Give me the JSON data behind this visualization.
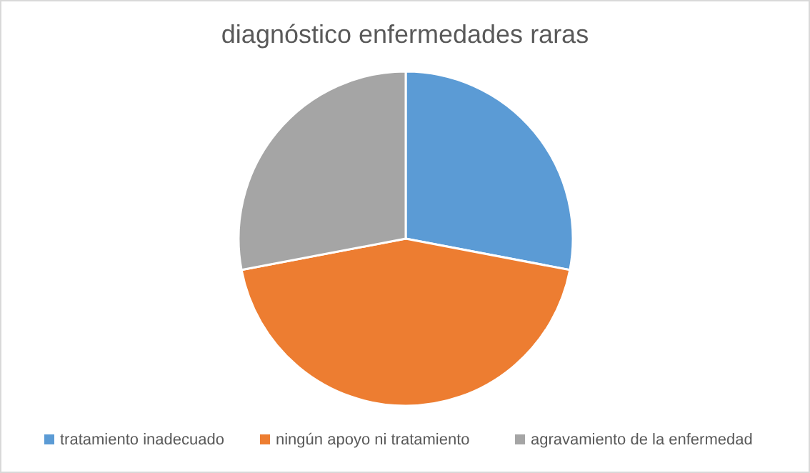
{
  "chart_data": {
    "type": "pie",
    "title": "diagnóstico enfermedades raras",
    "categories": [
      "tratamiento inadecuado",
      "ningún apoyo ni tratamiento",
      "agravamiento de la enfermedad"
    ],
    "values": [
      28,
      44,
      28
    ],
    "colors": [
      "#5b9bd5",
      "#ed7d31",
      "#a5a5a5"
    ],
    "legend": "bottom"
  }
}
